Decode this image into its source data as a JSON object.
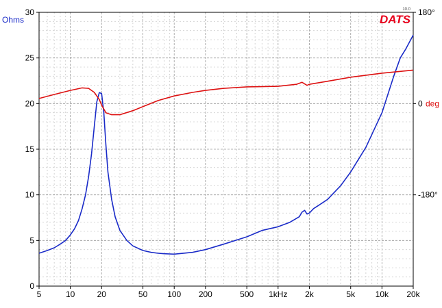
{
  "brand": {
    "name": "DATS",
    "version": "10.0"
  },
  "colors": {
    "impedance": "#1a2bc8",
    "phase": "#dd1111",
    "left_label": "#1a2bc8",
    "right_label": "#dd1111"
  },
  "chart_data": {
    "type": "line",
    "title": "",
    "xscale": "log",
    "xlim": [
      5,
      20000
    ],
    "x_ticks": [
      {
        "value": 5,
        "label": "5"
      },
      {
        "value": 10,
        "label": "10"
      },
      {
        "value": 20,
        "label": "20"
      },
      {
        "value": 50,
        "label": "50"
      },
      {
        "value": 100,
        "label": "100"
      },
      {
        "value": 200,
        "label": "200"
      },
      {
        "value": 500,
        "label": "500"
      },
      {
        "value": 1000,
        "label": "1kHz"
      },
      {
        "value": 2000,
        "label": "2k"
      },
      {
        "value": 5000,
        "label": "5k"
      },
      {
        "value": 10000,
        "label": "10k"
      },
      {
        "value": 20000,
        "label": "20k"
      }
    ],
    "y_left": {
      "label": "Ohms",
      "ylim": [
        0,
        30
      ],
      "ticks": [
        "0",
        "5",
        "10",
        "15",
        "20",
        "25",
        "30"
      ]
    },
    "y_right": {
      "label": "deg",
      "ylim": [
        -360,
        180
      ],
      "ticks": [
        {
          "value": 180,
          "label": "180°"
        },
        {
          "value": 0,
          "label": "0"
        },
        {
          "value": -180,
          "label": "-180°"
        }
      ]
    },
    "grid": true,
    "series": [
      {
        "axis": "left",
        "x": [
          5,
          6,
          7,
          8,
          9,
          10,
          11,
          12,
          13,
          14,
          15,
          16,
          17,
          18,
          19,
          20,
          21,
          22,
          23,
          25,
          27,
          30,
          35,
          40,
          50,
          60,
          70,
          80,
          100,
          150,
          200,
          300,
          500,
          700,
          1000,
          1300,
          1600,
          1700,
          1800,
          1900,
          2000,
          2200,
          2500,
          3000,
          4000,
          5000,
          7000,
          10000,
          13000,
          15000,
          17000,
          20000
        ],
        "values": [
          3.6,
          3.9,
          4.2,
          4.6,
          5.0,
          5.6,
          6.3,
          7.2,
          8.5,
          10.0,
          12.0,
          14.5,
          17.5,
          20.2,
          21.2,
          21.1,
          19.0,
          15.5,
          12.5,
          9.5,
          7.6,
          6.1,
          5.0,
          4.4,
          3.9,
          3.7,
          3.6,
          3.55,
          3.5,
          3.7,
          4.0,
          4.6,
          5.4,
          6.1,
          6.5,
          7.0,
          7.6,
          8.1,
          8.3,
          7.9,
          8.0,
          8.5,
          8.9,
          9.5,
          11.0,
          12.5,
          15.2,
          19.0,
          23.0,
          25.0,
          26.0,
          27.5
        ]
      },
      {
        "axis": "right",
        "x": [
          5,
          7,
          10,
          13,
          15,
          17,
          19,
          20,
          22,
          25,
          30,
          40,
          50,
          70,
          100,
          150,
          200,
          300,
          500,
          1000,
          1500,
          1700,
          1900,
          2000,
          3000,
          5000,
          10000,
          20000
        ],
        "values": [
          10,
          18,
          26,
          31,
          30,
          22,
          8,
          -3,
          -18,
          -22,
          -22,
          -14,
          -6,
          6,
          15,
          22,
          26,
          30,
          33,
          34,
          38,
          42,
          36,
          38,
          44,
          52,
          60,
          66
        ]
      }
    ]
  }
}
